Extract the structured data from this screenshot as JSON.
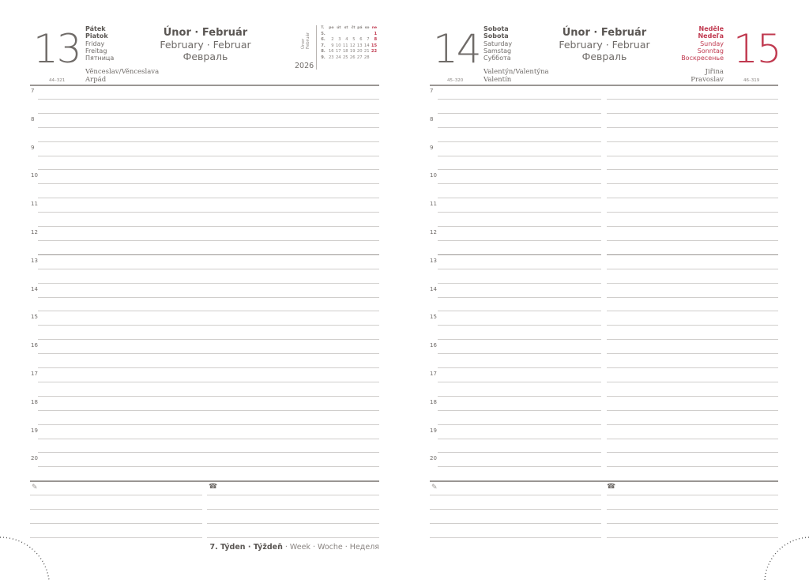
{
  "left_page": {
    "day_number": "13",
    "day_names": {
      "cz": "Pátek",
      "sk": "Piatok",
      "en": "Friday",
      "de": "Freitag",
      "ru": "Пятница"
    },
    "month": {
      "cz_sk": "Únor · Február",
      "en_de": "February · Februar",
      "ru": "Февраль"
    },
    "name_days": [
      "Věnceslav/Věnceslava",
      "Arpád"
    ],
    "day_count": "44–321",
    "mini_calendar": {
      "label": "Únor Február",
      "year": "2026",
      "header": [
        "T.",
        "po",
        "út",
        "st",
        "čt",
        "pá",
        "so",
        "ne"
      ],
      "rows": [
        [
          "5.",
          "",
          "",
          "",
          "",
          "",
          "",
          "1"
        ],
        [
          "6.",
          "2",
          "3",
          "4",
          "5",
          "6",
          "7",
          "8"
        ],
        [
          "7.",
          "9",
          "10",
          "11",
          "12",
          "13",
          "14",
          "15"
        ],
        [
          "8.",
          "16",
          "17",
          "18",
          "19",
          "20",
          "21",
          "22"
        ],
        [
          "9.",
          "23",
          "24",
          "25",
          "26",
          "27",
          "28",
          ""
        ]
      ]
    },
    "week_label": {
      "bold": "7. Týden · Týždeň",
      "rest": " · Week · Woche · Неделя"
    }
  },
  "right_page": {
    "saturday": {
      "day_number": "14",
      "day_names": {
        "cz": "Sobota",
        "sk": "Sobota",
        "en": "Saturday",
        "de": "Samstag",
        "ru": "Суббота"
      },
      "name_days": [
        "Valentýn/Valentýna",
        "Valentín"
      ],
      "day_count": "45–320"
    },
    "sunday": {
      "day_number": "15",
      "day_names": {
        "cz": "Neděle",
        "sk": "Nedeľa",
        "en": "Sunday",
        "de": "Sonntag",
        "ru": "Воскресенье"
      },
      "name_days": [
        "Jiřina",
        "Pravoslav"
      ],
      "day_count": "46–319"
    },
    "month": {
      "cz_sk": "Únor · Február",
      "en_de": "February · Februar",
      "ru": "Февраль"
    }
  },
  "hours": [
    "7",
    "8",
    "9",
    "10",
    "11",
    "12",
    "13",
    "14",
    "15",
    "16",
    "17",
    "18",
    "19",
    "20"
  ],
  "icons": {
    "notes": "pencil-icon",
    "contacts": "phone-icon"
  },
  "colors": {
    "text": "#6f6b68",
    "sunday": "#c0394f",
    "rule": "#d0cecc"
  }
}
